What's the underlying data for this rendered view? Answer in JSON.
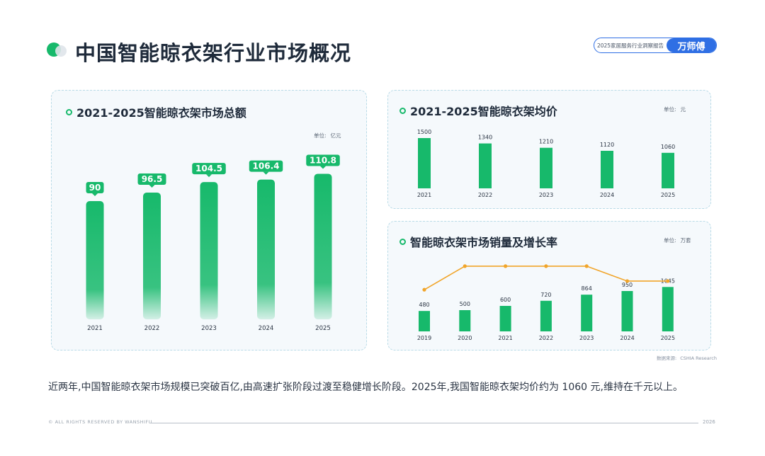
{
  "header": {
    "title": "中国智能晾衣架行业市场概况",
    "report_tag": "2025家居服务行业洞察报告",
    "brand_logo": "万师傅"
  },
  "colors": {
    "bar": "#17b96b",
    "line": "#f1a52a",
    "label_bg": "#17b96b"
  },
  "chart_data": [
    {
      "type": "bar",
      "title": "2021-2025智能晾衣架市场总额",
      "unit_label": "单位:",
      "unit": "亿元",
      "categories": [
        "2021",
        "2022",
        "2023",
        "2024",
        "2025"
      ],
      "values": [
        90,
        96.5,
        104.5,
        106.4,
        110.8
      ],
      "data_labels": [
        "90",
        "96.5",
        "104.5",
        "106.4",
        "110.8"
      ],
      "ylim": [
        0,
        120
      ]
    },
    {
      "type": "bar",
      "title": "2021-2025智能晾衣架均价",
      "unit_label": "单位:",
      "unit": "元",
      "categories": [
        "2021",
        "2022",
        "2023",
        "2024",
        "2025"
      ],
      "values": [
        1500,
        1340,
        1210,
        1120,
        1060
      ],
      "data_labels": [
        "1500",
        "1340",
        "1210",
        "1120",
        "1060"
      ],
      "ylim": [
        0,
        1500
      ]
    },
    {
      "type": "bar",
      "title": "智能晾衣架市场销量及增长率",
      "unit_label": "单位:",
      "unit": "万套",
      "categories": [
        "2019",
        "2020",
        "2021",
        "2022",
        "2023",
        "2024",
        "2025"
      ],
      "values": [
        480,
        500,
        600,
        720,
        864,
        950,
        1045
      ],
      "data_labels": [
        "480",
        "500",
        "600",
        "720",
        "864",
        "950",
        "1045"
      ],
      "ylim": [
        0,
        1100
      ],
      "line_series": {
        "values": [
          4.2,
          20,
          20,
          20,
          20,
          10,
          10
        ],
        "ylim": [
          0,
          25
        ]
      }
    }
  ],
  "source": {
    "label": "数据来源:",
    "value": "CSHIA Research"
  },
  "summary": "近两年,中国智能晾衣架市场规模已突破百亿,由高速扩张阶段过渡至稳健增长阶段。2025年,我国智能晾衣架均价约为 1060 元,维持在千元以上。",
  "footer": {
    "copyright": "© ALL RIGHTS RESERVED BY WANSHIFU",
    "year": "2026"
  }
}
